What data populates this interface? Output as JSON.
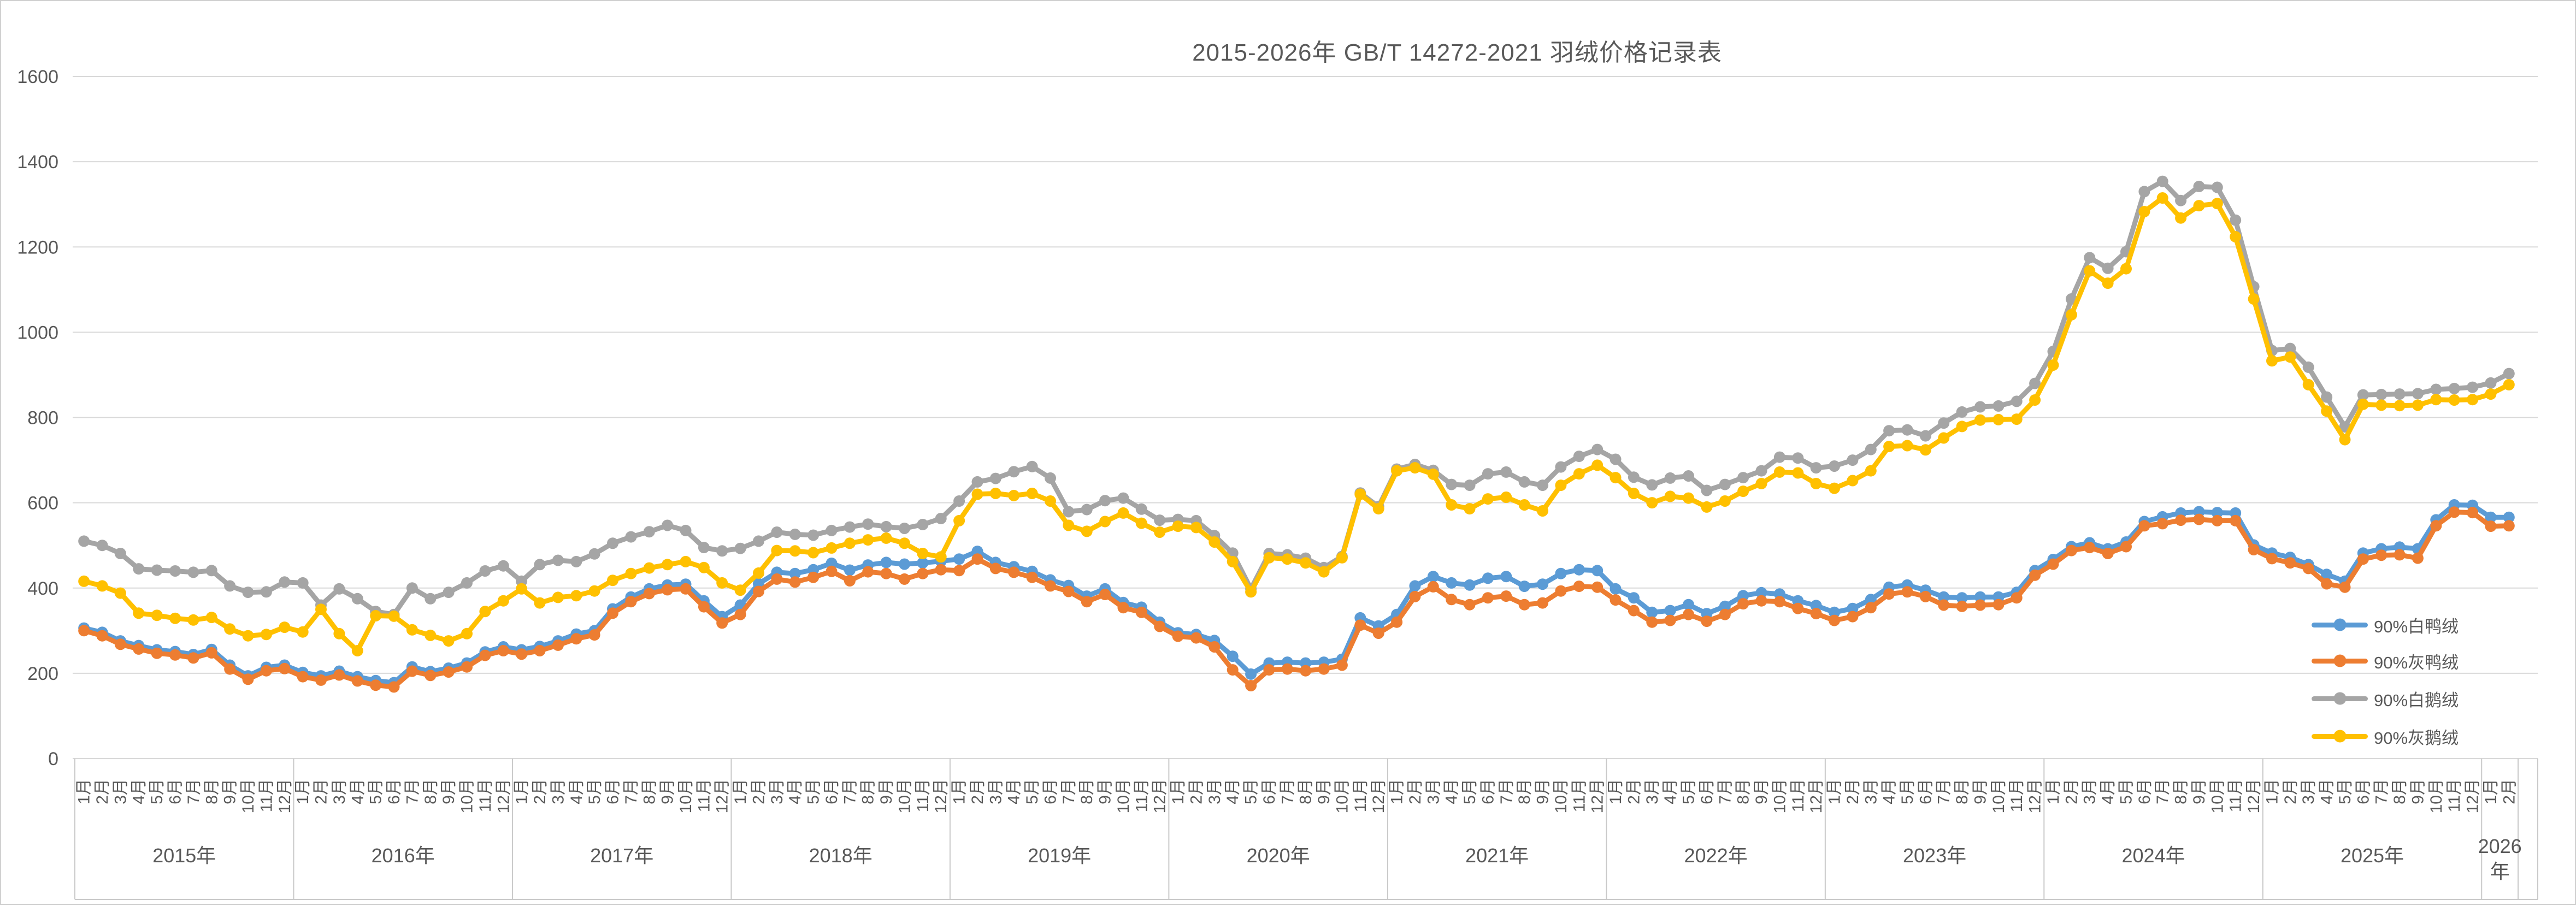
{
  "title": "2015-2026年 GB/T 14272-2021 羽绒价格记录表",
  "legend": {
    "position": "right-middle",
    "items": [
      {
        "label": "90%白鸭绒",
        "color": "#5B9BD5"
      },
      {
        "label": "90%灰鸭绒",
        "color": "#ED7D31"
      },
      {
        "label": "90%白鹅绒",
        "color": "#A5A5A5"
      },
      {
        "label": "90%灰鹅绒",
        "color": "#FFC000"
      }
    ]
  },
  "chart_data": {
    "type": "line",
    "title": "2015-2026年 GB/T 14272-2021 羽绒价格记录表",
    "xlabel": "",
    "ylabel": "",
    "ylim": [
      0,
      1600
    ],
    "y_step": 200,
    "y_tick_labels": [
      "0",
      "200",
      "400",
      "600",
      "800",
      "1000",
      "1200",
      "1400",
      "1600"
    ],
    "grid": true,
    "legend_position": "right-middle",
    "marker": "circle",
    "x_groups": [
      {
        "label": "2015年",
        "months": [
          "1月",
          "2月",
          "3月",
          "4月",
          "5月",
          "6月",
          "7月",
          "8月",
          "9月",
          "10月",
          "11月",
          "12月"
        ]
      },
      {
        "label": "2016年",
        "months": [
          "1月",
          "2月",
          "3月",
          "4月",
          "5月",
          "6月",
          "7月",
          "8月",
          "9月",
          "10月",
          "11月",
          "12月"
        ]
      },
      {
        "label": "2017年",
        "months": [
          "1月",
          "2月",
          "3月",
          "4月",
          "5月",
          "6月",
          "7月",
          "8月",
          "9月",
          "10月",
          "11月",
          "12月"
        ]
      },
      {
        "label": "2018年",
        "months": [
          "1月",
          "2月",
          "3月",
          "4月",
          "5月",
          "6月",
          "7月",
          "8月",
          "9月",
          "10月",
          "11月",
          "12月"
        ]
      },
      {
        "label": "2019年",
        "months": [
          "1月",
          "2月",
          "3月",
          "4月",
          "5月",
          "6月",
          "7月",
          "8月",
          "9月",
          "10月",
          "11月",
          "12月"
        ]
      },
      {
        "label": "2020年",
        "months": [
          "1月",
          "2月",
          "3月",
          "4月",
          "5月",
          "6月",
          "7月",
          "8月",
          "9月",
          "10月",
          "11月",
          "12月"
        ]
      },
      {
        "label": "2021年",
        "months": [
          "1月",
          "2月",
          "3月",
          "4月",
          "5月",
          "6月",
          "7月",
          "8月",
          "9月",
          "10月",
          "11月",
          "12月"
        ]
      },
      {
        "label": "2022年",
        "months": [
          "1月",
          "2月",
          "3月",
          "4月",
          "5月",
          "6月",
          "7月",
          "8月",
          "9月",
          "10月",
          "11月",
          "12月"
        ]
      },
      {
        "label": "2023年",
        "months": [
          "1月",
          "2月",
          "3月",
          "4月",
          "5月",
          "6月",
          "7月",
          "8月",
          "9月",
          "10月",
          "11月",
          "12月"
        ]
      },
      {
        "label": "2024年",
        "months": [
          "1月",
          "2月",
          "3月",
          "4月",
          "5月",
          "6月",
          "7月",
          "8月",
          "9月",
          "10月",
          "11月",
          "12月"
        ]
      },
      {
        "label": "2025年",
        "months": [
          "1月",
          "2月",
          "3月",
          "4月",
          "5月",
          "6月",
          "7月",
          "8月",
          "9月",
          "10月",
          "11月",
          "12月"
        ]
      },
      {
        "label": "2026年",
        "months": [
          "1月",
          "2月"
        ]
      }
    ],
    "series": [
      {
        "name": "90%白鸭绒",
        "color": "#5B9BD5",
        "values": [
          306,
          296,
          276,
          265,
          255,
          251,
          244,
          256,
          219,
          194,
          214,
          219,
          202,
          194,
          205,
          192,
          183,
          178,
          215,
          204,
          212,
          224,
          250,
          262,
          255,
          263,
          276,
          292,
          300,
          351,
          379,
          398,
          407,
          409,
          370,
          333,
          360,
          410,
          437,
          434,
          443,
          458,
          442,
          454,
          460,
          456,
          459,
          463,
          468,
          486,
          460,
          450,
          439,
          419,
          406,
          381,
          398,
          366,
          355,
          320,
          295,
          291,
          277,
          240,
          198,
          224,
          226,
          224,
          226,
          233,
          330,
          311,
          338,
          405,
          427,
          412,
          407,
          423,
          427,
          404,
          409,
          434,
          443,
          441,
          398,
          377,
          343,
          347,
          361,
          340,
          357,
          382,
          389,
          386,
          370,
          359,
          343,
          352,
          373,
          402,
          407,
          395,
          379,
          377,
          379,
          379,
          390,
          441,
          467,
          497,
          506,
          492,
          508,
          556,
          567,
          576,
          579,
          577,
          576,
          501,
          482,
          472,
          455,
          432,
          416,
          482,
          492,
          496,
          492,
          560,
          595,
          594,
          566,
          566
        ]
      },
      {
        "name": "90%灰鸭绒",
        "color": "#ED7D31",
        "values": [
          300,
          288,
          268,
          257,
          247,
          243,
          236,
          248,
          210,
          186,
          206,
          211,
          192,
          184,
          196,
          182,
          172,
          168,
          205,
          195,
          203,
          215,
          242,
          253,
          245,
          253,
          266,
          281,
          290,
          341,
          368,
          387,
          396,
          398,
          356,
          318,
          338,
          392,
          421,
          414,
          425,
          439,
          417,
          438,
          434,
          421,
          434,
          443,
          441,
          468,
          446,
          437,
          425,
          405,
          392,
          368,
          385,
          354,
          343,
          310,
          287,
          283,
          262,
          208,
          171,
          208,
          210,
          206,
          210,
          219,
          313,
          294,
          320,
          380,
          403,
          373,
          361,
          377,
          381,
          361,
          365,
          393,
          404,
          402,
          372,
          347,
          320,
          324,
          338,
          322,
          338,
          363,
          370,
          368,
          352,
          340,
          324,
          333,
          354,
          386,
          391,
          380,
          360,
          357,
          360,
          361,
          377,
          430,
          456,
          488,
          495,
          481,
          497,
          546,
          551,
          559,
          561,
          558,
          558,
          490,
          469,
          459,
          446,
          410,
          402,
          468,
          477,
          478,
          470,
          546,
          578,
          577,
          545,
          546
        ]
      },
      {
        "name": "90%白鹅绒",
        "color": "#A5A5A5",
        "values": [
          510,
          500,
          481,
          445,
          442,
          440,
          437,
          441,
          405,
          390,
          391,
          414,
          412,
          360,
          398,
          375,
          345,
          338,
          400,
          375,
          390,
          412,
          440,
          452,
          416,
          455,
          465,
          462,
          480,
          505,
          520,
          532,
          547,
          535,
          495,
          487,
          493,
          510,
          531,
          526,
          524,
          535,
          543,
          550,
          544,
          540,
          549,
          563,
          604,
          649,
          657,
          673,
          685,
          658,
          579,
          584,
          605,
          611,
          585,
          559,
          561,
          558,
          523,
          482,
          398,
          481,
          478,
          470,
          448,
          474,
          623,
          591,
          679,
          690,
          676,
          643,
          641,
          668,
          672,
          649,
          641,
          684,
          709,
          725,
          702,
          660,
          642,
          658,
          663,
          629,
          643,
          659,
          675,
          707,
          705,
          682,
          686,
          700,
          725,
          769,
          771,
          757,
          787,
          813,
          825,
          827,
          838,
          880,
          955,
          1078,
          1175,
          1150,
          1189,
          1330,
          1354,
          1309,
          1342,
          1340,
          1263,
          1107,
          957,
          962,
          918,
          848,
          778,
          853,
          854,
          855,
          856,
          866,
          868,
          871,
          881,
          903
        ]
      },
      {
        "name": "90%灰鹅绒",
        "color": "#FFC000",
        "values": [
          416,
          405,
          388,
          341,
          336,
          329,
          325,
          331,
          304,
          288,
          291,
          308,
          297,
          350,
          293,
          253,
          335,
          334,
          302,
          289,
          276,
          293,
          345,
          370,
          398,
          365,
          378,
          382,
          393,
          418,
          434,
          447,
          455,
          462,
          448,
          412,
          395,
          435,
          488,
          487,
          483,
          494,
          505,
          513,
          517,
          505,
          481,
          473,
          558,
          620,
          622,
          617,
          622,
          604,
          547,
          533,
          556,
          576,
          552,
          531,
          545,
          542,
          508,
          462,
          391,
          471,
          468,
          459,
          438,
          471,
          620,
          586,
          675,
          682,
          667,
          595,
          586,
          609,
          613,
          595,
          581,
          641,
          668,
          688,
          659,
          622,
          600,
          615,
          611,
          590,
          604,
          627,
          645,
          672,
          670,
          645,
          634,
          652,
          675,
          732,
          734,
          724,
          752,
          779,
          794,
          795,
          796,
          841,
          923,
          1041,
          1144,
          1115,
          1149,
          1283,
          1315,
          1268,
          1297,
          1302,
          1224,
          1078,
          933,
          942,
          877,
          815,
          748,
          831,
          829,
          828,
          829,
          842,
          841,
          842,
          855,
          877
        ]
      }
    ]
  },
  "layout_colors": {
    "grid": "#D9D9D9",
    "axis_box": "#C9C9C9",
    "text": "#595959",
    "frame": "#D0D0D0"
  }
}
